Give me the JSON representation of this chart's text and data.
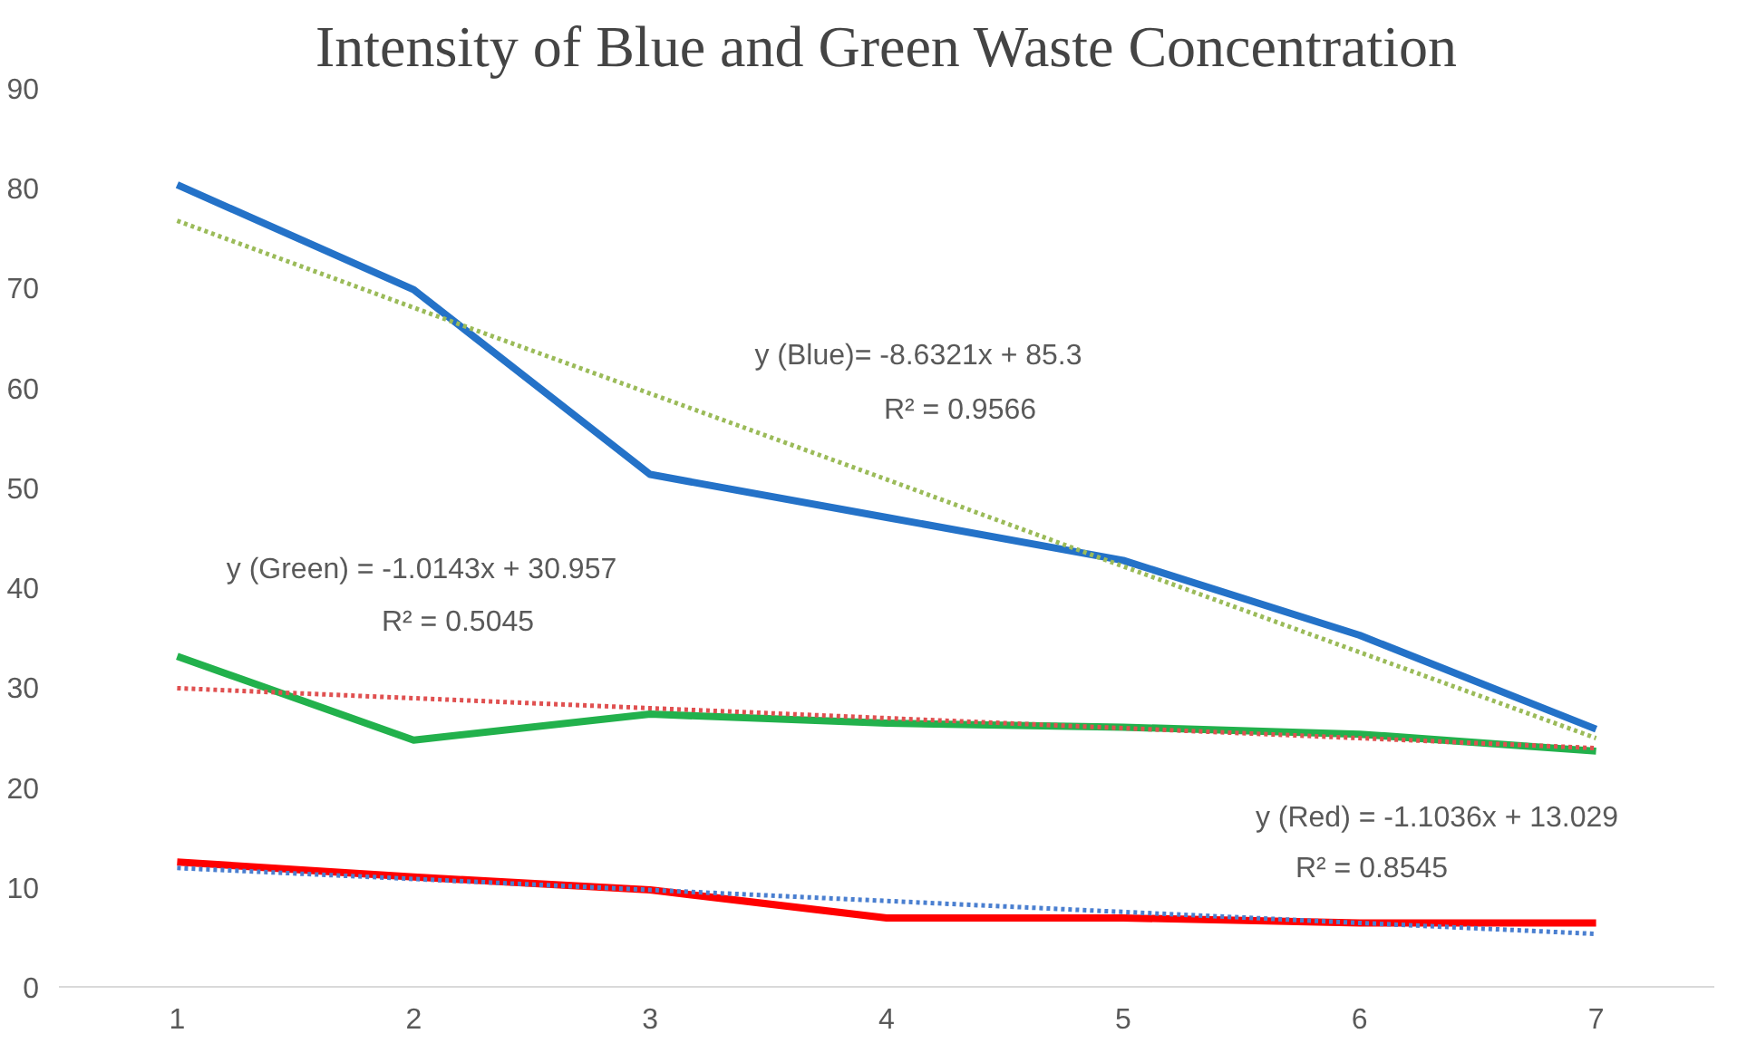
{
  "chart_data": {
    "type": "line",
    "title": "Intensity of Blue and Green Waste Concentration",
    "x": [
      1,
      2,
      3,
      4,
      5,
      6,
      7
    ],
    "xlim": [
      0.5,
      7.5
    ],
    "xticks": [
      1,
      2,
      3,
      4,
      5,
      6,
      7
    ],
    "ylim": [
      0,
      90
    ],
    "yticks": [
      0,
      10,
      20,
      30,
      40,
      50,
      60,
      70,
      80,
      90
    ],
    "grid": false,
    "marker": "none",
    "series": [
      {
        "color": "#2472c8",
        "values": [
          80.3,
          69.8,
          51.3,
          47,
          42.7,
          35.2,
          25.8
        ],
        "line_style": "solid"
      },
      {
        "color": "#22b14c",
        "values": [
          33.1,
          24.7,
          27.3,
          26.4,
          26,
          25.3,
          23.6
        ],
        "line_style": "solid"
      },
      {
        "color": "#ff0000",
        "values": [
          12.5,
          11,
          9.7,
          6.9,
          6.9,
          6.4,
          6.4
        ],
        "line_style": "solid"
      },
      {
        "type": "line",
        "color": "#9bbb59",
        "values": [
          76.7,
          68.0,
          59.4,
          50.8,
          42.1,
          33.5,
          24.9
        ],
        "line_style": "dotted"
      },
      {
        "type": "line",
        "color": "#e05050",
        "values": [
          29.9,
          28.9,
          27.9,
          26.9,
          25.9,
          24.9,
          23.9
        ],
        "line_style": "dotted"
      },
      {
        "type": "line",
        "color": "#4a7fd0",
        "values": [
          11.9,
          10.8,
          9.7,
          8.6,
          7.5,
          6.4,
          5.3
        ],
        "line_style": "dotted"
      }
    ],
    "annotations": [
      "y (Blue)= -8.6321x + 85.3",
      "R² = 0.9566",
      "y (Green) = -1.0143x + 30.957",
      "R² = 0.5045",
      "y (Red) = -1.1036x + 13.029",
      "R² = 0.8545"
    ]
  }
}
